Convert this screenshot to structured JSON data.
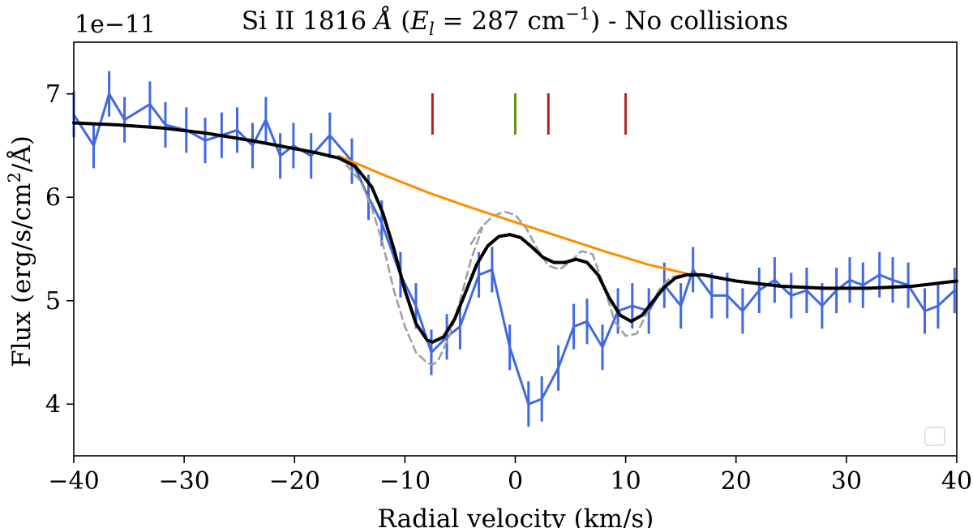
{
  "chart_data": {
    "type": "line",
    "title_parts": {
      "species": "Si II 1816",
      "angstrom": "Å",
      "el_symbol": "E",
      "el_sub": "l",
      "el_eq": "= 287 cm",
      "el_exp": "−1",
      "suffix": "- No collisions"
    },
    "xlabel": "Radial velocity (km/s)",
    "ylabel_parts": {
      "main": "Flux (erg/s/cm",
      "exp": "2",
      "tail": "/Å)"
    },
    "y_offset_label": "1e−11",
    "xlim": [
      -40,
      40
    ],
    "ylim": [
      3.5,
      7.5
    ],
    "x_ticks": [
      -40,
      -30,
      -20,
      -10,
      0,
      10,
      20,
      30,
      40
    ],
    "x_tick_labels": [
      "−40",
      "−30",
      "−20",
      "−10",
      "0",
      "10",
      "20",
      "30",
      "40"
    ],
    "y_ticks": [
      4,
      5,
      6,
      7
    ],
    "y_tick_labels": [
      "4",
      "5",
      "6",
      "7"
    ],
    "series": [
      {
        "name": "observed",
        "color": "#4169e1",
        "x": [
          -40,
          -38.2,
          -36.8,
          -35.4,
          -33.1,
          -31.7,
          -29.8,
          -28.1,
          -26.6,
          -25.2,
          -23.8,
          -22.6,
          -21.3,
          -20.1,
          -18.5,
          -16.8,
          -14.8,
          -13.3,
          -12.1,
          -10.4,
          -9.0,
          -7.6,
          -6.2,
          -5.0,
          -3.3,
          -2.1,
          -0.5,
          1.2,
          2.4,
          3.9,
          5.3,
          6.5,
          7.9,
          9.3,
          10.6,
          12.1,
          13.5,
          15.0,
          16.1,
          17.8,
          19.2,
          20.6,
          22.1,
          23.5,
          25.0,
          26.4,
          27.8,
          29.1,
          30.3,
          31.5,
          33.0,
          34.2,
          35.6,
          37.1,
          38.3,
          39.8
        ],
        "y": [
          6.8,
          6.5,
          7.0,
          6.75,
          6.9,
          6.7,
          6.65,
          6.55,
          6.6,
          6.65,
          6.5,
          6.75,
          6.4,
          6.5,
          6.4,
          6.6,
          6.35,
          6.0,
          5.75,
          5.25,
          4.95,
          4.5,
          4.65,
          4.75,
          5.25,
          5.3,
          4.55,
          4.0,
          4.05,
          4.35,
          4.75,
          4.8,
          4.55,
          4.9,
          4.95,
          4.9,
          5.15,
          4.95,
          5.3,
          5.05,
          5.05,
          4.9,
          5.1,
          5.2,
          5.05,
          5.1,
          4.95,
          5.1,
          5.2,
          5.15,
          5.25,
          5.2,
          5.15,
          4.9,
          4.95,
          5.1
        ],
        "err": 0.22
      },
      {
        "name": "continuum",
        "color": "#ff8c00",
        "x": [
          -16.0,
          -12.0,
          -8.0,
          -4.0,
          0.0,
          4.0,
          8.0,
          12.0,
          16.0
        ],
        "y": [
          6.4,
          6.22,
          6.05,
          5.9,
          5.76,
          5.62,
          5.48,
          5.35,
          5.25
        ]
      },
      {
        "name": "model_fit",
        "color": "#000000",
        "x": [
          -40,
          -36,
          -32,
          -28,
          -24,
          -20,
          -18,
          -16,
          -14.5,
          -13,
          -12,
          -11,
          -10,
          -9,
          -8,
          -7.5,
          -6.5,
          -5.5,
          -4.5,
          -3.5,
          -2.5,
          -1.5,
          -0.5,
          0.5,
          1.5,
          2.5,
          3.5,
          4.5,
          5.5,
          6.5,
          7.5,
          8.5,
          9.5,
          10.5,
          11.5,
          12.5,
          13.5,
          14.5,
          15.5,
          17,
          20,
          24,
          28,
          32,
          36,
          40
        ],
        "y": [
          6.72,
          6.7,
          6.67,
          6.62,
          6.55,
          6.47,
          6.43,
          6.38,
          6.3,
          6.1,
          5.85,
          5.5,
          5.1,
          4.78,
          4.62,
          4.6,
          4.65,
          4.82,
          5.08,
          5.35,
          5.53,
          5.62,
          5.64,
          5.61,
          5.52,
          5.42,
          5.37,
          5.37,
          5.4,
          5.37,
          5.25,
          5.03,
          4.86,
          4.8,
          4.86,
          5.0,
          5.13,
          5.22,
          5.25,
          5.25,
          5.19,
          5.14,
          5.12,
          5.12,
          5.14,
          5.19
        ]
      },
      {
        "name": "component_a",
        "color": "#a0a0a0",
        "dashed": true,
        "x": [
          -16,
          -14,
          -13,
          -12,
          -11,
          -10,
          -9,
          -8,
          -7.5,
          -7,
          -6,
          -5,
          -4,
          -3
        ],
        "y": [
          6.4,
          6.15,
          5.9,
          5.55,
          5.1,
          4.75,
          4.5,
          4.4,
          4.38,
          4.42,
          4.65,
          5.0,
          5.4,
          5.7
        ]
      },
      {
        "name": "component_b",
        "color": "#a0a0a0",
        "dashed": true,
        "x": [
          -4,
          -3,
          -2,
          -1,
          0,
          1,
          2,
          3,
          4,
          5,
          6,
          7,
          8,
          9,
          10,
          11,
          12,
          13,
          14,
          15,
          16
        ],
        "y": [
          5.55,
          5.72,
          5.82,
          5.86,
          5.83,
          5.7,
          5.5,
          5.34,
          5.3,
          5.38,
          5.48,
          5.45,
          5.15,
          4.8,
          4.66,
          4.68,
          4.9,
          5.1,
          5.22,
          5.25,
          5.25
        ]
      }
    ],
    "markers": [
      {
        "x": -7.5,
        "color": "#b22222"
      },
      {
        "x": 0.0,
        "color": "#6b8e23"
      },
      {
        "x": 3.0,
        "color": "#b22222"
      },
      {
        "x": 10.0,
        "color": "#b22222"
      }
    ],
    "legend": {
      "placement": "lower right",
      "entries": []
    }
  }
}
